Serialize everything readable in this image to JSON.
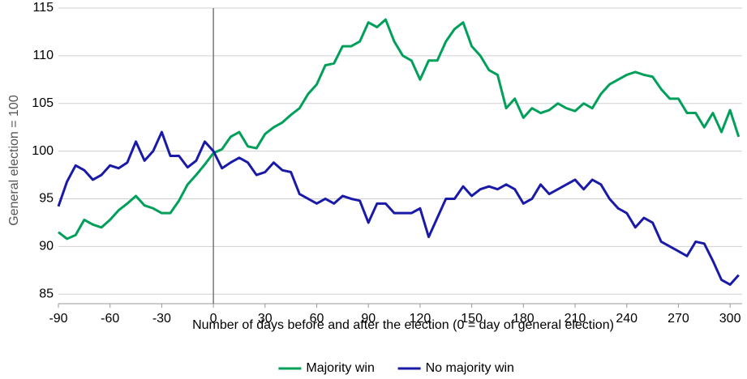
{
  "chart_data": {
    "type": "line",
    "x_label": "Number of days before and after the election (0 = day of general election)",
    "y_label": "General election = 100",
    "x": [
      -90,
      -85,
      -80,
      -75,
      -70,
      -65,
      -60,
      -55,
      -50,
      -45,
      -40,
      -35,
      -30,
      -25,
      -20,
      -15,
      -10,
      -5,
      0,
      5,
      10,
      15,
      20,
      25,
      30,
      35,
      40,
      45,
      50,
      55,
      60,
      65,
      70,
      75,
      80,
      85,
      90,
      95,
      100,
      105,
      110,
      115,
      120,
      125,
      130,
      135,
      140,
      145,
      150,
      155,
      160,
      165,
      170,
      175,
      180,
      185,
      190,
      195,
      200,
      205,
      210,
      215,
      220,
      225,
      230,
      235,
      240,
      245,
      250,
      255,
      260,
      265,
      270,
      275,
      280,
      285,
      290,
      295,
      300,
      305
    ],
    "series": [
      {
        "name": "Majority win",
        "color": "#00a05a",
        "values": [
          91.5,
          90.8,
          91.2,
          92.8,
          92.3,
          92.0,
          92.8,
          93.8,
          94.5,
          95.3,
          94.3,
          94.0,
          93.5,
          93.5,
          94.8,
          96.5,
          97.5,
          98.6,
          99.8,
          100.2,
          101.5,
          102.0,
          100.5,
          100.3,
          101.8,
          102.5,
          103.0,
          103.8,
          104.5,
          106.0,
          107.0,
          109.0,
          109.2,
          111.0,
          111.0,
          111.5,
          113.5,
          113.0,
          113.8,
          111.5,
          110.0,
          109.5,
          107.5,
          109.5,
          109.5,
          111.5,
          112.8,
          113.5,
          111.0,
          110.0,
          108.5,
          108.0,
          104.5,
          105.5,
          103.5,
          104.5,
          104.0,
          104.3,
          105.0,
          104.5,
          104.2,
          105.0,
          104.5,
          106.0,
          107.0,
          107.5,
          108.0,
          108.3,
          108.0,
          107.8,
          106.5,
          105.5,
          105.5,
          104.0,
          104.0,
          102.5,
          104.0,
          102.0,
          104.3,
          101.5
        ]
      },
      {
        "name": "No majority win",
        "color": "#1a1aa8",
        "values": [
          94.2,
          96.8,
          98.5,
          98.0,
          97.0,
          97.5,
          98.5,
          98.2,
          98.8,
          101.0,
          99.0,
          100.0,
          102.0,
          99.5,
          99.5,
          98.3,
          99.0,
          101.0,
          100.0,
          98.2,
          98.8,
          99.3,
          98.8,
          97.5,
          97.8,
          98.8,
          98.0,
          97.8,
          95.5,
          95.0,
          94.5,
          95.0,
          94.5,
          95.3,
          95.0,
          94.8,
          92.5,
          94.5,
          94.5,
          93.5,
          93.5,
          93.5,
          94.0,
          91.0,
          93.0,
          95.0,
          95.0,
          96.3,
          95.3,
          96.0,
          96.3,
          96.0,
          96.5,
          96.0,
          94.5,
          95.0,
          96.5,
          95.5,
          96.0,
          96.5,
          97.0,
          96.0,
          97.0,
          96.5,
          95.0,
          94.0,
          93.5,
          92.0,
          93.0,
          92.5,
          90.5,
          90.0,
          89.5,
          89.0,
          90.5,
          90.3,
          88.5,
          86.5,
          86.0,
          87.0
        ]
      }
    ],
    "xlim": [
      -90,
      307
    ],
    "ylim": [
      84,
      115
    ],
    "xticks": [
      -90,
      -60,
      -30,
      0,
      30,
      60,
      90,
      120,
      150,
      180,
      210,
      240,
      270,
      300
    ],
    "yticks": [
      85,
      90,
      95,
      100,
      105,
      110,
      115
    ],
    "vline": 0,
    "grid": true,
    "legend": "bottom"
  }
}
